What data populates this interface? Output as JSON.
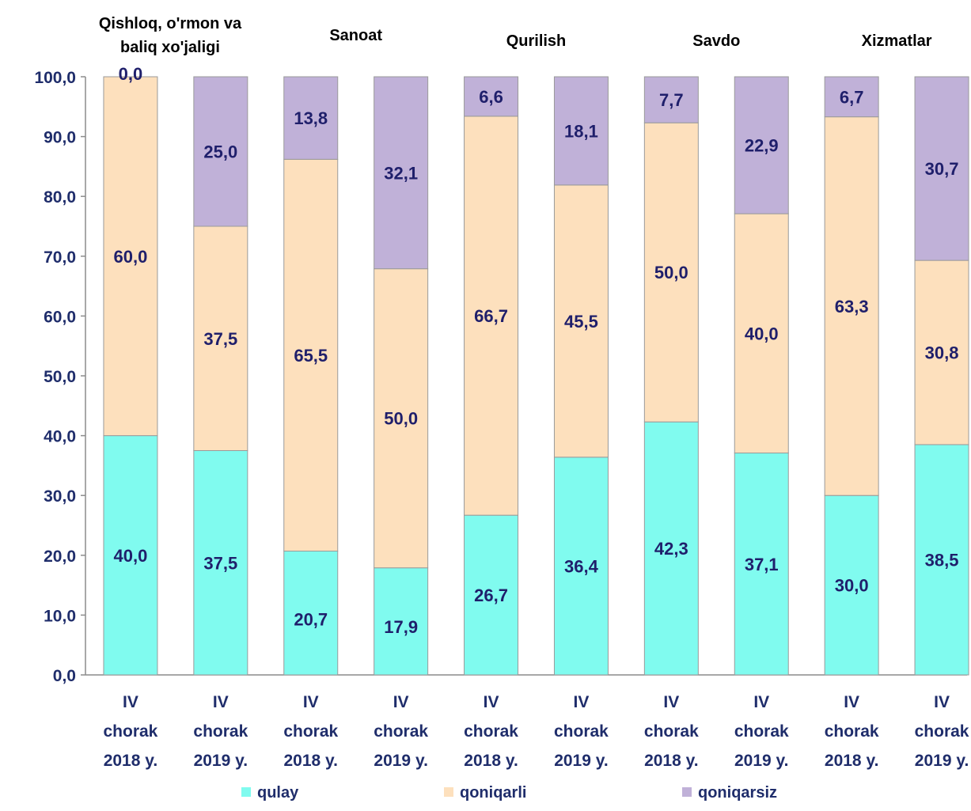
{
  "chart_data": {
    "type": "bar",
    "stacked": true,
    "groups": [
      "Qishloq, o'rmon va baliq xo'jaligi",
      "Sanoat",
      "Qurilish",
      "Savdo",
      "Xizmatlar"
    ],
    "categories": [
      [
        "IV",
        "chorak",
        "2018 y."
      ],
      [
        "IV",
        "chorak",
        "2019 y."
      ],
      [
        "IV",
        "chorak",
        "2018 y."
      ],
      [
        "IV",
        "chorak",
        "2019 y."
      ],
      [
        "IV",
        "chorak",
        "2018 y."
      ],
      [
        "IV",
        "chorak",
        "2019 y."
      ],
      [
        "IV",
        "chorak",
        "2018 y."
      ],
      [
        "IV",
        "chorak",
        "2019 y."
      ],
      [
        "IV",
        "chorak",
        "2018 y."
      ],
      [
        "IV",
        "chorak",
        "2019 y."
      ]
    ],
    "series": [
      {
        "name": "qulay",
        "color": "#80fbef",
        "values": [
          40.0,
          37.5,
          20.7,
          17.9,
          26.7,
          36.4,
          42.3,
          37.1,
          30.0,
          38.5
        ],
        "labels": [
          "40,0",
          "37,5",
          "20,7",
          "17,9",
          "26,7",
          "36,4",
          "42,3",
          "37,1",
          "30,0",
          "38,5"
        ]
      },
      {
        "name": "qoniqarli",
        "color": "#fde0bd",
        "values": [
          60.0,
          37.5,
          65.5,
          50.0,
          66.7,
          45.5,
          50.0,
          40.0,
          63.3,
          30.8
        ],
        "labels": [
          "60,0",
          "37,5",
          "65,5",
          "50,0",
          "66,7",
          "45,5",
          "50,0",
          "40,0",
          "63,3",
          "30,8"
        ]
      },
      {
        "name": "qoniqarsiz",
        "color": "#c0b1d8",
        "values": [
          0.0,
          25.0,
          13.8,
          32.1,
          6.6,
          18.1,
          7.7,
          22.9,
          6.7,
          30.7
        ],
        "labels": [
          "0,0",
          "25,0",
          "13,8",
          "32,1",
          "6,6",
          "18,1",
          "7,7",
          "22,9",
          "6,7",
          "30,7"
        ]
      }
    ],
    "ylim": [
      0,
      100
    ],
    "yticks": [
      "0,0",
      "10,0",
      "20,0",
      "30,0",
      "40,0",
      "50,0",
      "60,0",
      "70,0",
      "80,0",
      "90,0",
      "100,0"
    ],
    "legend_position": "bottom",
    "grid": false
  }
}
